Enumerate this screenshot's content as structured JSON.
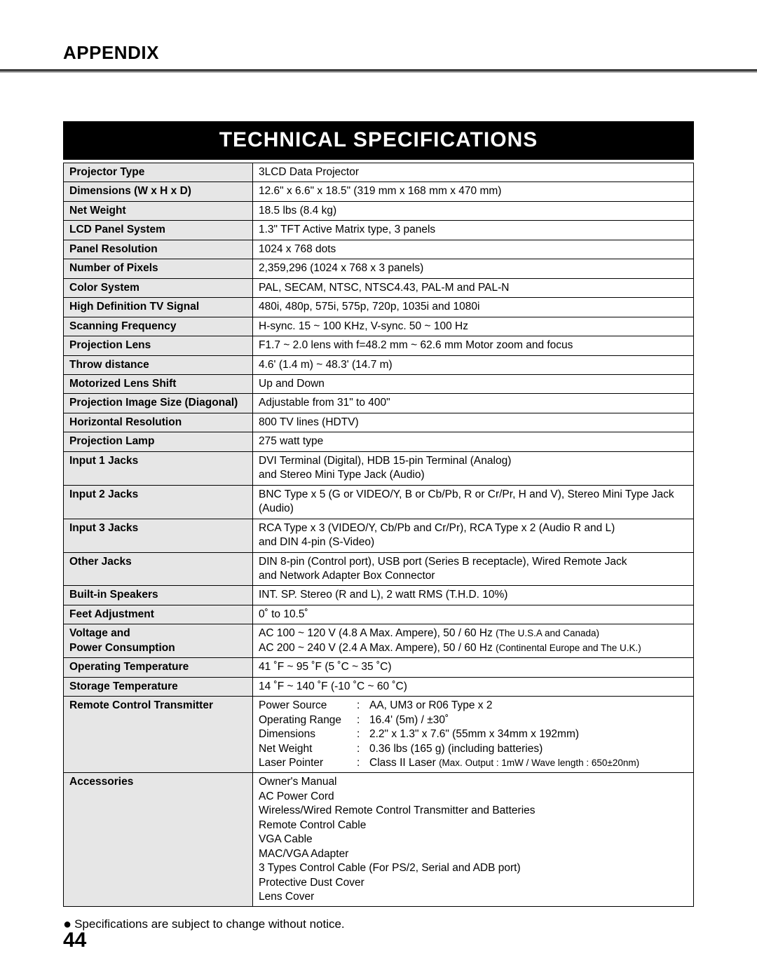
{
  "header": {
    "appendix": "APPENDIX"
  },
  "title": "TECHNICAL SPECIFICATIONS",
  "rows": [
    {
      "label": "Projector Type",
      "value": "3LCD Data Projector"
    },
    {
      "label": "Dimensions (W x H x D)",
      "value": "12.6\" x 6.6\" x 18.5\" (319 mm x 168 mm x 470 mm)"
    },
    {
      "label": "Net Weight",
      "value": "18.5 lbs (8.4 kg)"
    },
    {
      "label": "LCD Panel System",
      "value": "1.3\" TFT Active Matrix type, 3 panels"
    },
    {
      "label": "Panel Resolution",
      "value": "1024 x 768 dots"
    },
    {
      "label": "Number of Pixels",
      "value": "2,359,296 (1024 x 768 x 3 panels)"
    },
    {
      "label": "Color System",
      "value": "PAL, SECAM, NTSC, NTSC4.43, PAL-M and PAL-N"
    },
    {
      "label": "High Definition TV Signal",
      "value": "480i, 480p, 575i, 575p, 720p, 1035i and 1080i"
    },
    {
      "label": "Scanning Frequency",
      "value": "H-sync. 15 ~ 100 KHz, V-sync. 50 ~ 100 Hz"
    },
    {
      "label": "Projection Lens",
      "value": "F1.7 ~ 2.0 lens with f=48.2 mm ~ 62.6 mm Motor zoom and focus"
    },
    {
      "label": "Throw distance",
      "value": "4.6' (1.4 m) ~ 48.3' (14.7 m)"
    },
    {
      "label": "Motorized Lens Shift",
      "value": "Up and Down"
    },
    {
      "label": "Projection Image Size (Diagonal)",
      "value": "Adjustable from 31\" to 400\""
    },
    {
      "label": "Horizontal Resolution",
      "value": "800 TV lines (HDTV)"
    },
    {
      "label": "Projection Lamp",
      "value": "275 watt type"
    },
    {
      "label": "Input 1 Jacks",
      "value": "DVI Terminal (Digital), HDB 15-pin Terminal (Analog)\nand Stereo Mini Type Jack (Audio)"
    },
    {
      "label": "Input 2 Jacks",
      "value": "BNC Type x 5 (G or VIDEO/Y, B or Cb/Pb, R or Cr/Pr, H and V), Stereo Mini Type Jack (Audio)"
    },
    {
      "label": "Input 3 Jacks",
      "value": "RCA Type x 3 (VIDEO/Y, Cb/Pb and Cr/Pr), RCA Type x 2 (Audio R and L)\nand DIN 4-pin (S-Video)"
    },
    {
      "label": "Other Jacks",
      "value": "DIN 8-pin (Control port), USB port (Series B receptacle), Wired Remote Jack\nand Network Adapter Box Connector"
    },
    {
      "label": "Built-in Speakers",
      "value": "INT. SP. Stereo (R and L), 2 watt RMS (T.H.D. 10%)"
    },
    {
      "label": "Feet Adjustment",
      "value": "0˚ to 10.5˚"
    },
    {
      "label": "Voltage and\nPower Consumption",
      "value_html": "AC 100 ~ 120 V (4.8 A  Max. Ampere), 50 / 60 Hz  <span class=\"small\">(The U.S.A and Canada)</span><br>AC 200 ~ 240 V (2.4 A  Max. Ampere), 50 / 60 Hz  <span class=\"small\">(Continental Europe and The U.K.)</span>"
    },
    {
      "label": "Operating Temperature",
      "value": "41 ˚F ~ 95 ˚F (5 ˚C ~ 35 ˚C)"
    },
    {
      "label": "Storage Temperature",
      "value": "14 ˚F ~ 140 ˚F (-10 ˚C ~ 60 ˚C)"
    }
  ],
  "remote": {
    "label": "Remote Control Transmitter",
    "items": [
      {
        "k": "Power Source",
        "v": "AA, UM3 or R06 Type x 2"
      },
      {
        "k": "Operating Range",
        "v": "16.4' (5m) / ±30˚"
      },
      {
        "k": "Dimensions",
        "v": "2.2\" x 1.3\" x 7.6\" (55mm x 34mm x 192mm)"
      },
      {
        "k": "Net Weight",
        "v": "0.36 lbs (165 g) (including batteries)"
      },
      {
        "k": "Laser Pointer",
        "v_html": "Class II Laser  <span class=\"small\">(Max. Output : 1mW / Wave length : 650±20nm)</span>"
      }
    ]
  },
  "accessories": {
    "label": "Accessories",
    "lines": [
      "Owner's Manual",
      "AC Power Cord",
      "Wireless/Wired Remote Control Transmitter and Batteries",
      "Remote Control Cable",
      "VGA Cable",
      "MAC/VGA Adapter",
      "3 Types Control Cable (For PS/2, Serial and ADB port)",
      "Protective Dust Cover",
      "Lens Cover"
    ]
  },
  "footnote": "Specifications are subject to change without notice.",
  "page_number": "44"
}
